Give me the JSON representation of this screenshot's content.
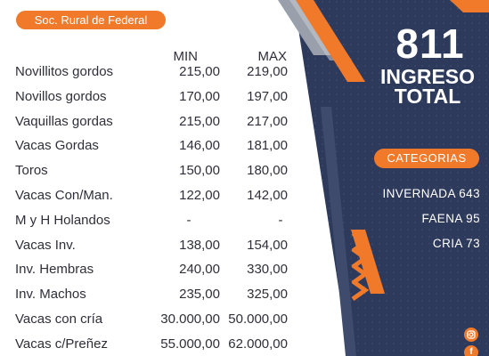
{
  "header": {
    "title": "Soc. Rural de Federal"
  },
  "columns": {
    "min": "MIN",
    "max": "MAX"
  },
  "rows": [
    {
      "label": "Novillitos gordos",
      "min": "215,00",
      "max": "219,00"
    },
    {
      "label": "Novillos gordos",
      "min": "170,00",
      "max": "197,00"
    },
    {
      "label": "Vaquillas gordas",
      "min": "215,00",
      "max": "217,00"
    },
    {
      "label": "Vacas Gordas",
      "min": "146,00",
      "max": "181,00"
    },
    {
      "label": "Toros",
      "min": "150,00",
      "max": "180,00"
    },
    {
      "label": "Vacas Con/Man.",
      "min": "122,00",
      "max": "142,00"
    },
    {
      "label": "M y H Holandos",
      "min": "-",
      "max": "-"
    },
    {
      "label": "Vacas Inv.",
      "min": "138,00",
      "max": "154,00"
    },
    {
      "label": "Inv. Hembras",
      "min": "240,00",
      "max": "330,00"
    },
    {
      "label": "Inv. Machos",
      "min": "235,00",
      "max": "325,00"
    },
    {
      "label": "Vacas con cría",
      "min": "30.000,00",
      "max": "50.000,00"
    },
    {
      "label": "Vacas c/Preñez",
      "min": "55.000,00",
      "max": "62.000,00"
    }
  ],
  "summary": {
    "total_number": "811",
    "total_label_line1": "INGRESO",
    "total_label_line2": "TOTAL",
    "categories_title": "CATEGORIAS",
    "categories": [
      "INVERNADA 643",
      "FAENA 95",
      "CRIA 73"
    ]
  },
  "social": {
    "instagram_icon": "instagram-icon",
    "facebook_icon": "facebook-icon",
    "facebook_glyph": "f"
  },
  "colors": {
    "accent": "#f07a2a",
    "panel": "#2e3a5c",
    "text": "#2f2f3a"
  }
}
